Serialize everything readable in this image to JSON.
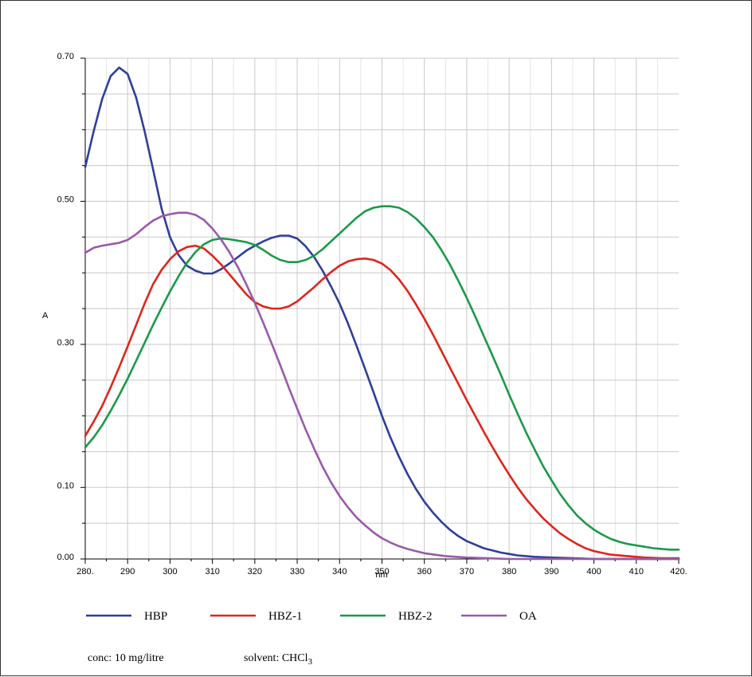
{
  "chart_data": {
    "type": "line",
    "title": "",
    "xlabel": "nm",
    "ylabel": "A",
    "xlim": [
      280,
      420
    ],
    "ylim": [
      0,
      0.7
    ],
    "grid": true,
    "x_major_ticks": [
      280,
      290,
      300,
      310,
      320,
      330,
      340,
      350,
      360,
      370,
      380,
      390,
      400,
      410,
      420
    ],
    "x_tick_labels": [
      "280.",
      "290",
      "300",
      "310",
      "320",
      "330",
      "340",
      "350",
      "360",
      "370",
      "380",
      "390",
      "400",
      "410",
      "420."
    ],
    "y_labeled_ticks": [
      0.0,
      0.1,
      0.3,
      0.5,
      0.7
    ],
    "y_tick_labels": [
      "0.00",
      "0.10",
      "0.30",
      "0.50",
      "0.70"
    ],
    "y_minor_ticks": [
      0.05,
      0.15,
      0.2,
      0.25,
      0.35,
      0.4,
      0.45,
      0.55,
      0.6,
      0.65
    ],
    "legend_placement": "bottom",
    "series": [
      {
        "name": "HBP",
        "color": "#2f3f9a",
        "points": [
          [
            280,
            0.548
          ],
          [
            282,
            0.598
          ],
          [
            284,
            0.643
          ],
          [
            286,
            0.675
          ],
          [
            288,
            0.687
          ],
          [
            290,
            0.678
          ],
          [
            292,
            0.645
          ],
          [
            294,
            0.598
          ],
          [
            296,
            0.545
          ],
          [
            298,
            0.49
          ],
          [
            300,
            0.45
          ],
          [
            302,
            0.425
          ],
          [
            304,
            0.41
          ],
          [
            306,
            0.403
          ],
          [
            308,
            0.399
          ],
          [
            310,
            0.399
          ],
          [
            312,
            0.405
          ],
          [
            314,
            0.413
          ],
          [
            316,
            0.422
          ],
          [
            318,
            0.431
          ],
          [
            320,
            0.438
          ],
          [
            322,
            0.444
          ],
          [
            324,
            0.449
          ],
          [
            326,
            0.452
          ],
          [
            328,
            0.452
          ],
          [
            330,
            0.448
          ],
          [
            332,
            0.437
          ],
          [
            334,
            0.422
          ],
          [
            336,
            0.403
          ],
          [
            338,
            0.381
          ],
          [
            340,
            0.357
          ],
          [
            342,
            0.329
          ],
          [
            344,
            0.298
          ],
          [
            346,
            0.266
          ],
          [
            348,
            0.233
          ],
          [
            350,
            0.2
          ],
          [
            352,
            0.17
          ],
          [
            354,
            0.143
          ],
          [
            356,
            0.119
          ],
          [
            358,
            0.098
          ],
          [
            360,
            0.08
          ],
          [
            362,
            0.065
          ],
          [
            364,
            0.052
          ],
          [
            366,
            0.041
          ],
          [
            368,
            0.032
          ],
          [
            370,
            0.025
          ],
          [
            374,
            0.015
          ],
          [
            378,
            0.009
          ],
          [
            382,
            0.005
          ],
          [
            386,
            0.003
          ],
          [
            390,
            0.002
          ],
          [
            395,
            0.001
          ],
          [
            400,
            0.0
          ],
          [
            410,
            0.0
          ],
          [
            420,
            0.0
          ]
        ]
      },
      {
        "name": "HBZ-1",
        "color": "#e0251b",
        "points": [
          [
            280,
            0.172
          ],
          [
            282,
            0.192
          ],
          [
            284,
            0.214
          ],
          [
            286,
            0.24
          ],
          [
            288,
            0.268
          ],
          [
            290,
            0.297
          ],
          [
            292,
            0.327
          ],
          [
            294,
            0.357
          ],
          [
            296,
            0.384
          ],
          [
            298,
            0.404
          ],
          [
            300,
            0.419
          ],
          [
            302,
            0.43
          ],
          [
            304,
            0.436
          ],
          [
            306,
            0.438
          ],
          [
            308,
            0.434
          ],
          [
            310,
            0.424
          ],
          [
            312,
            0.412
          ],
          [
            314,
            0.398
          ],
          [
            316,
            0.384
          ],
          [
            318,
            0.37
          ],
          [
            320,
            0.359
          ],
          [
            322,
            0.353
          ],
          [
            324,
            0.35
          ],
          [
            326,
            0.35
          ],
          [
            328,
            0.353
          ],
          [
            330,
            0.36
          ],
          [
            332,
            0.37
          ],
          [
            334,
            0.38
          ],
          [
            336,
            0.391
          ],
          [
            338,
            0.401
          ],
          [
            340,
            0.41
          ],
          [
            342,
            0.416
          ],
          [
            344,
            0.419
          ],
          [
            346,
            0.42
          ],
          [
            348,
            0.418
          ],
          [
            350,
            0.413
          ],
          [
            352,
            0.404
          ],
          [
            354,
            0.391
          ],
          [
            356,
            0.375
          ],
          [
            358,
            0.356
          ],
          [
            360,
            0.336
          ],
          [
            362,
            0.314
          ],
          [
            364,
            0.291
          ],
          [
            366,
            0.268
          ],
          [
            368,
            0.245
          ],
          [
            370,
            0.222
          ],
          [
            372,
            0.2
          ],
          [
            374,
            0.178
          ],
          [
            376,
            0.157
          ],
          [
            378,
            0.137
          ],
          [
            380,
            0.118
          ],
          [
            382,
            0.1
          ],
          [
            384,
            0.084
          ],
          [
            386,
            0.07
          ],
          [
            388,
            0.057
          ],
          [
            390,
            0.046
          ],
          [
            392,
            0.036
          ],
          [
            394,
            0.028
          ],
          [
            396,
            0.021
          ],
          [
            398,
            0.015
          ],
          [
            400,
            0.011
          ],
          [
            404,
            0.006
          ],
          [
            408,
            0.004
          ],
          [
            412,
            0.002
          ],
          [
            416,
            0.001
          ],
          [
            420,
            0.001
          ]
        ]
      },
      {
        "name": "HBZ-2",
        "color": "#1a9a4a",
        "points": [
          [
            280,
            0.156
          ],
          [
            282,
            0.17
          ],
          [
            284,
            0.187
          ],
          [
            286,
            0.207
          ],
          [
            288,
            0.229
          ],
          [
            290,
            0.252
          ],
          [
            292,
            0.277
          ],
          [
            294,
            0.302
          ],
          [
            296,
            0.327
          ],
          [
            298,
            0.351
          ],
          [
            300,
            0.374
          ],
          [
            302,
            0.395
          ],
          [
            304,
            0.414
          ],
          [
            306,
            0.429
          ],
          [
            308,
            0.44
          ],
          [
            310,
            0.446
          ],
          [
            312,
            0.448
          ],
          [
            314,
            0.447
          ],
          [
            316,
            0.445
          ],
          [
            318,
            0.443
          ],
          [
            320,
            0.439
          ],
          [
            322,
            0.432
          ],
          [
            324,
            0.424
          ],
          [
            326,
            0.418
          ],
          [
            328,
            0.415
          ],
          [
            330,
            0.415
          ],
          [
            332,
            0.418
          ],
          [
            334,
            0.424
          ],
          [
            336,
            0.433
          ],
          [
            338,
            0.444
          ],
          [
            340,
            0.455
          ],
          [
            342,
            0.466
          ],
          [
            344,
            0.477
          ],
          [
            346,
            0.486
          ],
          [
            348,
            0.491
          ],
          [
            350,
            0.493
          ],
          [
            352,
            0.493
          ],
          [
            354,
            0.491
          ],
          [
            356,
            0.485
          ],
          [
            358,
            0.476
          ],
          [
            360,
            0.464
          ],
          [
            362,
            0.45
          ],
          [
            364,
            0.432
          ],
          [
            366,
            0.412
          ],
          [
            368,
            0.389
          ],
          [
            370,
            0.365
          ],
          [
            372,
            0.339
          ],
          [
            374,
            0.312
          ],
          [
            376,
            0.285
          ],
          [
            378,
            0.258
          ],
          [
            380,
            0.23
          ],
          [
            382,
            0.203
          ],
          [
            384,
            0.177
          ],
          [
            386,
            0.153
          ],
          [
            388,
            0.13
          ],
          [
            390,
            0.11
          ],
          [
            392,
            0.091
          ],
          [
            394,
            0.075
          ],
          [
            396,
            0.061
          ],
          [
            398,
            0.05
          ],
          [
            400,
            0.041
          ],
          [
            402,
            0.034
          ],
          [
            404,
            0.028
          ],
          [
            406,
            0.024
          ],
          [
            408,
            0.021
          ],
          [
            410,
            0.019
          ],
          [
            412,
            0.017
          ],
          [
            414,
            0.015
          ],
          [
            416,
            0.014
          ],
          [
            418,
            0.013
          ],
          [
            420,
            0.013
          ]
        ]
      },
      {
        "name": "OA",
        "color": "#9a5aab",
        "points": [
          [
            280,
            0.428
          ],
          [
            282,
            0.435
          ],
          [
            284,
            0.438
          ],
          [
            286,
            0.44
          ],
          [
            288,
            0.442
          ],
          [
            290,
            0.446
          ],
          [
            292,
            0.454
          ],
          [
            294,
            0.464
          ],
          [
            296,
            0.473
          ],
          [
            298,
            0.479
          ],
          [
            300,
            0.482
          ],
          [
            302,
            0.484
          ],
          [
            304,
            0.484
          ],
          [
            306,
            0.481
          ],
          [
            308,
            0.474
          ],
          [
            310,
            0.462
          ],
          [
            312,
            0.447
          ],
          [
            314,
            0.429
          ],
          [
            316,
            0.408
          ],
          [
            318,
            0.384
          ],
          [
            320,
            0.358
          ],
          [
            322,
            0.33
          ],
          [
            324,
            0.301
          ],
          [
            326,
            0.271
          ],
          [
            328,
            0.24
          ],
          [
            330,
            0.21
          ],
          [
            332,
            0.181
          ],
          [
            334,
            0.154
          ],
          [
            336,
            0.129
          ],
          [
            338,
            0.107
          ],
          [
            340,
            0.088
          ],
          [
            342,
            0.072
          ],
          [
            344,
            0.058
          ],
          [
            346,
            0.047
          ],
          [
            348,
            0.037
          ],
          [
            350,
            0.029
          ],
          [
            352,
            0.023
          ],
          [
            354,
            0.018
          ],
          [
            356,
            0.014
          ],
          [
            358,
            0.011
          ],
          [
            360,
            0.008
          ],
          [
            365,
            0.004
          ],
          [
            370,
            0.002
          ],
          [
            375,
            0.001
          ],
          [
            380,
            0.0
          ],
          [
            400,
            0.0
          ],
          [
            420,
            0.0
          ]
        ]
      }
    ]
  },
  "notes": {
    "conc": "conc: 10 mg/litre",
    "solvent_prefix": "solvent: CHCl",
    "solvent_subscript": "3"
  }
}
